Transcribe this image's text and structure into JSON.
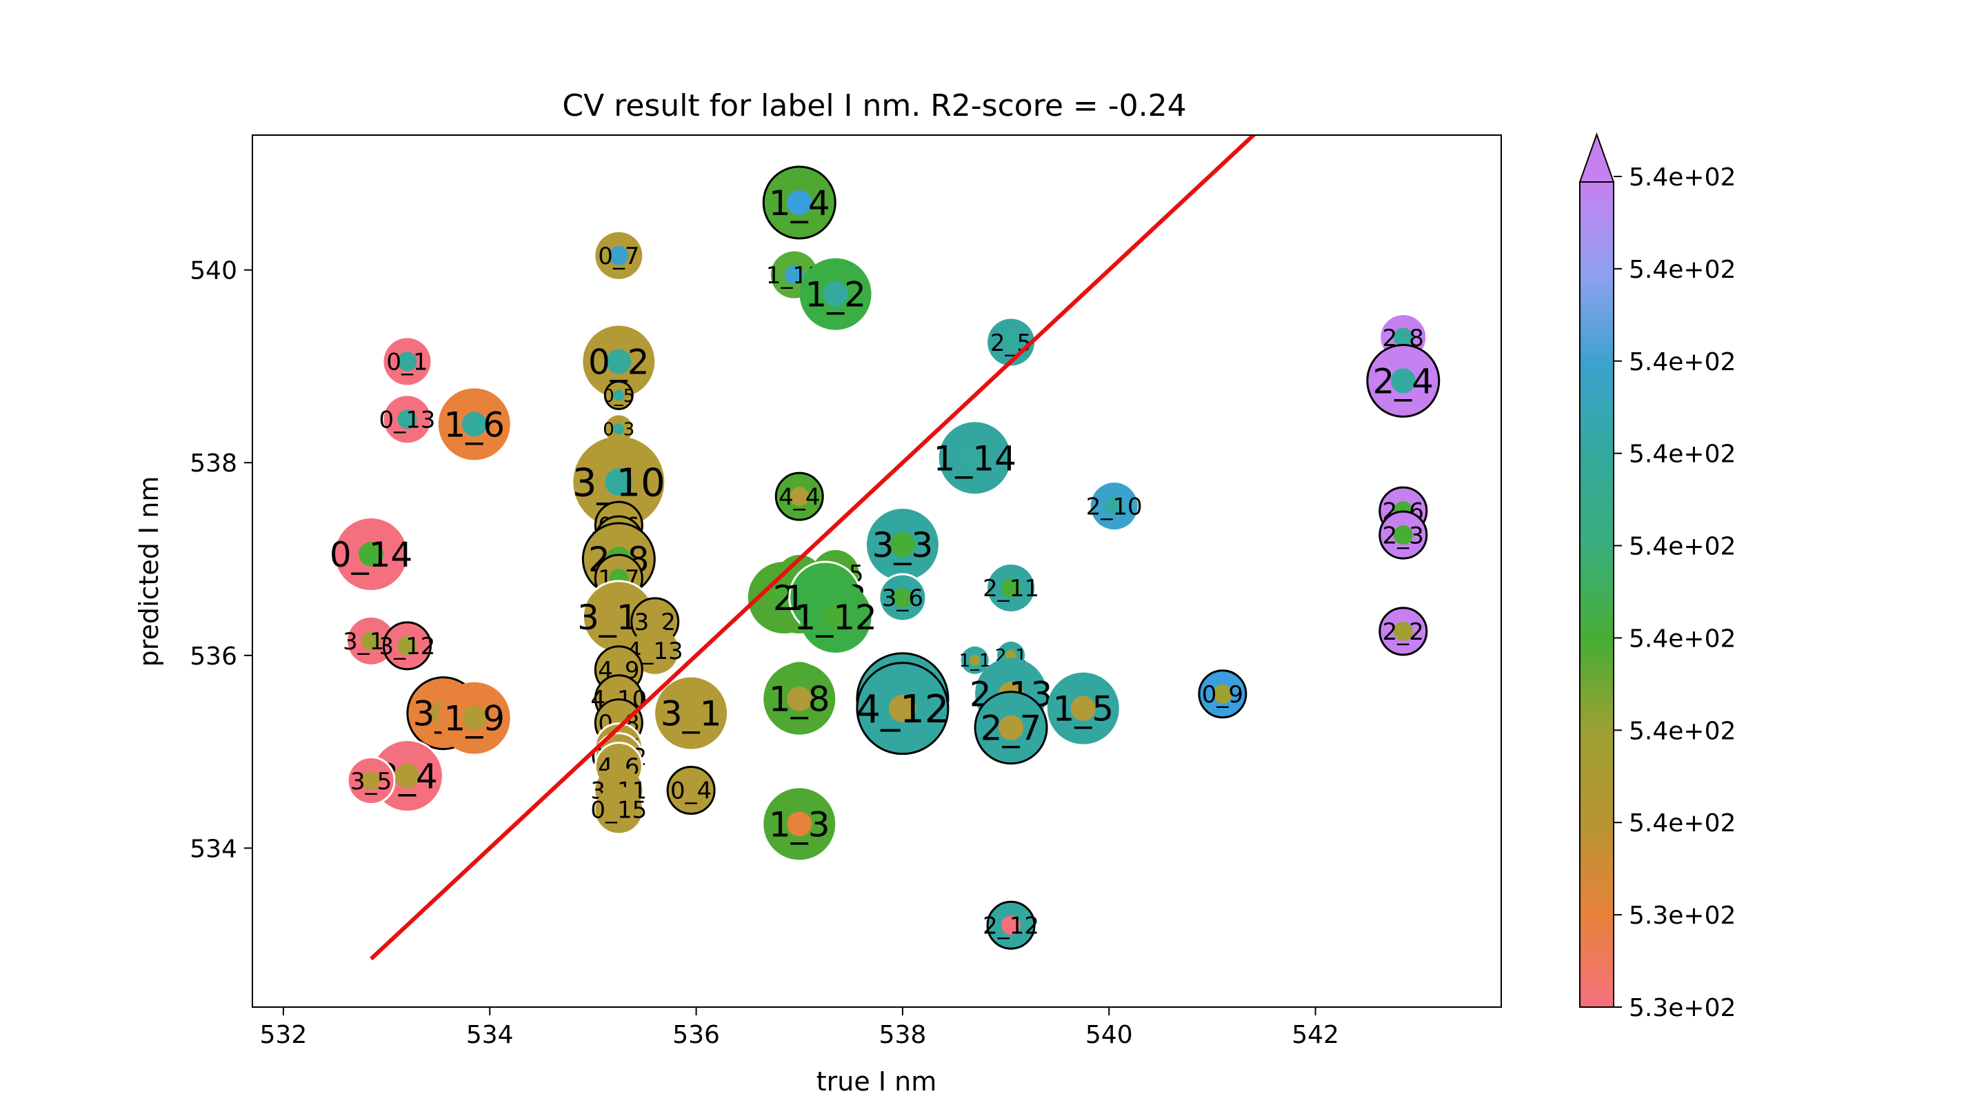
{
  "chart_data": {
    "type": "scatter",
    "title": "CV result for label I nm. R2-score = -0.24",
    "xlabel": "true I nm",
    "ylabel": "predicted I nm",
    "xlim": [
      531.7,
      543.8
    ],
    "ylim": [
      532.35,
      541.4
    ],
    "xticks": [
      "532",
      "534",
      "536",
      "538",
      "540",
      "542"
    ],
    "yticks": [
      "534",
      "536",
      "538",
      "540"
    ],
    "grid": false,
    "reference_line": {
      "color": "#e81010",
      "from": [
        532.85,
        532.85
      ],
      "to": [
        541.5,
        541.5
      ]
    },
    "colorbar": {
      "tick_labels": [
        "5.3e+02",
        "5.3e+02",
        "5.4e+02",
        "5.4e+02",
        "5.4e+02",
        "5.4e+02",
        "5.4e+02",
        "5.4e+02",
        "5.4e+02",
        "5.4e+02"
      ],
      "extend": "max",
      "colors": [
        "#f5707f",
        "#e8823a",
        "#b89434",
        "#9ea034",
        "#48ad34",
        "#3aae7a",
        "#34a99c",
        "#3aa2cc",
        "#8fa0f0",
        "#c780f0"
      ]
    },
    "points": [
      {
        "label": "1_4",
        "x": 537.0,
        "y": 540.7,
        "size": 2,
        "color": "#4fa832",
        "inner_color": "#3a9fdc",
        "edge": "black"
      },
      {
        "label": "0_7",
        "x": 535.25,
        "y": 540.15,
        "size": 1,
        "color": "#b29a37",
        "inner_color": "#3aa2cc",
        "edge": "none"
      },
      {
        "label": "1_11",
        "x": 536.95,
        "y": 539.95,
        "size": 1,
        "color": "#58ad36",
        "inner_color": "#3aa2cc",
        "edge": "none"
      },
      {
        "label": "1_2",
        "x": 537.35,
        "y": 539.75,
        "size": 2,
        "color": "#3aae44",
        "inner_color": "#34aa9e",
        "edge": "none"
      },
      {
        "label": "2_5",
        "x": 539.05,
        "y": 539.25,
        "size": 1,
        "color": "#34a6a0",
        "inner_color": "#34aa9e",
        "edge": "none"
      },
      {
        "label": "0_1",
        "x": 533.2,
        "y": 539.05,
        "size": 1,
        "color": "#f5707f",
        "inner_color": "#34a99c",
        "edge": "none"
      },
      {
        "label": "0_2",
        "x": 535.25,
        "y": 539.05,
        "size": 2,
        "color": "#b29a37",
        "inner_color": "#34a99c",
        "edge": "none"
      },
      {
        "label": "2_8",
        "x": 542.85,
        "y": 539.3,
        "size": 1,
        "color": "#c780f0",
        "inner_color": "#34a99c",
        "edge": "white"
      },
      {
        "label": "2_4",
        "x": 542.85,
        "y": 538.85,
        "size": 2,
        "color": "#c780f0",
        "inner_color": "#34aa9e",
        "edge": "black"
      },
      {
        "label": "0_5",
        "x": 535.25,
        "y": 538.7,
        "size": 0,
        "color": "#b29a37",
        "inner_color": "#34aa9e",
        "edge": "black"
      },
      {
        "label": "0_13",
        "x": 533.2,
        "y": 538.45,
        "size": 1,
        "color": "#f5707f",
        "inner_color": "#34aa9e",
        "edge": "none"
      },
      {
        "label": "1_6",
        "x": 533.85,
        "y": 538.4,
        "size": 2,
        "color": "#e8823a",
        "inner_color": "#34aa9e",
        "edge": "none"
      },
      {
        "label": "0_3",
        "x": 535.25,
        "y": 538.35,
        "size": 0,
        "color": "#b29a37",
        "inner_color": "#34aa9e",
        "edge": "none"
      },
      {
        "label": "1_14",
        "x": 538.7,
        "y": 538.05,
        "size": 2,
        "color": "#34a6a0",
        "inner_color": "#34aa9e",
        "edge": "none"
      },
      {
        "label": "3_10",
        "x": 535.25,
        "y": 537.8,
        "size": 3,
        "color": "#b29a37",
        "inner_color": "#34aa9e",
        "edge": "none"
      },
      {
        "label": "4_4",
        "x": 537.0,
        "y": 537.65,
        "size": 1,
        "color": "#4fa832",
        "inner_color": "#b29a37",
        "edge": "black"
      },
      {
        "label": "2_10",
        "x": 540.05,
        "y": 537.55,
        "size": 1,
        "color": "#3aa2cc",
        "inner_color": "#34aa9e",
        "edge": "none"
      },
      {
        "label": "2_6",
        "x": 542.85,
        "y": 537.5,
        "size": 1,
        "color": "#c780f0",
        "inner_color": "#48ad34",
        "edge": "black"
      },
      {
        "label": "2_3",
        "x": 542.85,
        "y": 537.25,
        "size": 1,
        "color": "#c780f0",
        "inner_color": "#48ad34",
        "edge": "black"
      },
      {
        "label": "0_6",
        "x": 535.25,
        "y": 537.35,
        "size": 1,
        "color": "#b29a37",
        "inner_color": "#34aa9e",
        "edge": "black"
      },
      {
        "label": "3_12",
        "x": 535.25,
        "y": 537.2,
        "size": 1,
        "color": "#b29a37",
        "inner_color": "#34aa9e",
        "edge": "black"
      },
      {
        "label": "3_3",
        "x": 538.0,
        "y": 537.15,
        "size": 2,
        "color": "#34a6a0",
        "inner_color": "#48ad34",
        "edge": "none"
      },
      {
        "label": "0_14",
        "x": 532.85,
        "y": 537.05,
        "size": 2,
        "color": "#f5707f",
        "inner_color": "#48ad34",
        "edge": "none"
      },
      {
        "label": "2_8",
        "x": 535.25,
        "y": 537.0,
        "size": 2,
        "color": "#b29a37",
        "inner_color": "#48ad34",
        "edge": "black"
      },
      {
        "label": "1_7",
        "x": 535.25,
        "y": 536.8,
        "size": 1,
        "color": "#b29a37",
        "inner_color": "#48ad34",
        "edge": "black"
      },
      {
        "label": "1_7",
        "x": 537.0,
        "y": 536.8,
        "size": 1,
        "color": "#4fa832",
        "inner_color": "#b29a37",
        "edge": "none"
      },
      {
        "label": "1_15",
        "x": 537.35,
        "y": 536.85,
        "size": 1,
        "color": "#4fa832",
        "inner_color": "#48ad34",
        "edge": "none"
      },
      {
        "label": "2_11",
        "x": 539.05,
        "y": 536.7,
        "size": 1,
        "color": "#34a6a0",
        "inner_color": "#48ad34",
        "edge": "none"
      },
      {
        "label": "1_9",
        "x": 537.0,
        "y": 536.6,
        "size": 2,
        "color": "#4fa832",
        "inner_color": "#48ad34",
        "edge": "none"
      },
      {
        "label": "2",
        "x": 536.85,
        "y": 536.6,
        "size": 2,
        "color": "#4fa832",
        "inner_color": "#48ad34",
        "edge": "none"
      },
      {
        "label": "1_13",
        "x": 537.25,
        "y": 536.6,
        "size": 2,
        "color": "#3aae44",
        "inner_color": "#48ad34",
        "edge": "white"
      },
      {
        "label": "3_6",
        "x": 538.0,
        "y": 536.6,
        "size": 1,
        "color": "#34a6a0",
        "inner_color": "#48ad34",
        "edge": "white"
      },
      {
        "label": "1_12",
        "x": 537.35,
        "y": 536.4,
        "size": 2,
        "color": "#3aae44",
        "inner_color": "#48ad34",
        "edge": "none"
      },
      {
        "label": "3_15",
        "x": 535.25,
        "y": 536.4,
        "size": 2,
        "color": "#b29a37",
        "inner_color": "#b29a37",
        "edge": "white"
      },
      {
        "label": "3_2",
        "x": 535.6,
        "y": 536.35,
        "size": 1,
        "color": "#b29a37",
        "inner_color": "#b29a37",
        "edge": "black"
      },
      {
        "label": "2_2",
        "x": 542.85,
        "y": 536.25,
        "size": 1,
        "color": "#c780f0",
        "inner_color": "#9ea034",
        "edge": "black"
      },
      {
        "label": "3_16",
        "x": 532.85,
        "y": 536.15,
        "size": 1,
        "color": "#f5707f",
        "inner_color": "#9ea034",
        "edge": "none"
      },
      {
        "label": "3_12",
        "x": 533.2,
        "y": 536.1,
        "size": 1,
        "color": "#f5707f",
        "inner_color": "#9ea034",
        "edge": "black"
      },
      {
        "label": "4_13",
        "x": 535.6,
        "y": 536.05,
        "size": 1,
        "color": "#b29a37",
        "inner_color": "#b29a37",
        "edge": "none"
      },
      {
        "label": "2_1",
        "x": 539.05,
        "y": 536.0,
        "size": 0,
        "color": "#34a6a0",
        "inner_color": "#9ea034",
        "edge": "none"
      },
      {
        "label": "1_1",
        "x": 538.7,
        "y": 535.95,
        "size": 0,
        "color": "#34a6a0",
        "inner_color": "#9ea034",
        "edge": "none"
      },
      {
        "label": "4_9",
        "x": 535.25,
        "y": 535.85,
        "size": 1,
        "color": "#b29a37",
        "inner_color": "#b29a37",
        "edge": "black"
      },
      {
        "label": "3_14",
        "x": 537.0,
        "y": 535.7,
        "size": 1,
        "color": "#4fa832",
        "inner_color": "#b29a37",
        "edge": "white"
      },
      {
        "label": "2_13",
        "x": 539.05,
        "y": 535.6,
        "size": 2,
        "color": "#34a6a0",
        "inner_color": "#b29a37",
        "edge": "none"
      },
      {
        "label": "0_9",
        "x": 541.1,
        "y": 535.6,
        "size": 1,
        "color": "#3a9fdc",
        "inner_color": "#9ea034",
        "edge": "black"
      },
      {
        "label": "1_8",
        "x": 537.0,
        "y": 535.55,
        "size": 2,
        "color": "#4fa832",
        "inner_color": "#b29a37",
        "edge": "none"
      },
      {
        "label": "4_10",
        "x": 535.25,
        "y": 535.55,
        "size": 1,
        "color": "#b29a37",
        "inner_color": "#b29a37",
        "edge": "black"
      },
      {
        "label": "4_5",
        "x": 538.0,
        "y": 535.55,
        "size": 3,
        "color": "#34a6a0",
        "inner_color": "#48ad34",
        "edge": "black"
      },
      {
        "label": "4_12",
        "x": 538.0,
        "y": 535.45,
        "size": 3,
        "color": "#34a6a0",
        "inner_color": "#b29a37",
        "edge": "black"
      },
      {
        "label": "1_5",
        "x": 539.75,
        "y": 535.45,
        "size": 2,
        "color": "#34a6a0",
        "inner_color": "#b29a37",
        "edge": "none"
      },
      {
        "label": "3_1",
        "x": 535.95,
        "y": 535.4,
        "size": 2,
        "color": "#b29a37",
        "inner_color": "#b29a37",
        "edge": "none"
      },
      {
        "label": "3_1",
        "x": 533.55,
        "y": 535.4,
        "size": 2,
        "color": "#e8823a",
        "inner_color": "#b29a37",
        "edge": "black"
      },
      {
        "label": "1_9",
        "x": 533.85,
        "y": 535.35,
        "size": 2,
        "color": "#e8823a",
        "inner_color": "#b29a37",
        "edge": "none"
      },
      {
        "label": "0_8",
        "x": 535.25,
        "y": 535.3,
        "size": 1,
        "color": "#b29a37",
        "inner_color": "#b29a37",
        "edge": "black"
      },
      {
        "label": "2_7",
        "x": 539.05,
        "y": 535.25,
        "size": 2,
        "color": "#34a6a0",
        "inner_color": "#b29a37",
        "edge": "black"
      },
      {
        "label": "4_7",
        "x": 535.25,
        "y": 535.05,
        "size": 1,
        "color": "#b29a37",
        "inner_color": "#b29a37",
        "edge": "white"
      },
      {
        "label": "0_12",
        "x": 535.25,
        "y": 534.95,
        "size": 1,
        "color": "#b29a37",
        "inner_color": "#b29a37",
        "edge": "white"
      },
      {
        "label": "3_4",
        "x": 533.2,
        "y": 534.75,
        "size": 2,
        "color": "#f5707f",
        "inner_color": "#b29a37",
        "edge": "white"
      },
      {
        "label": "3_5",
        "x": 532.85,
        "y": 534.7,
        "size": 1,
        "color": "#f5707f",
        "inner_color": "#b29a37",
        "edge": "white"
      },
      {
        "label": "4_6",
        "x": 535.25,
        "y": 534.85,
        "size": 1,
        "color": "#b29a37",
        "inner_color": "#b29a37",
        "edge": "white"
      },
      {
        "label": "0_4",
        "x": 535.95,
        "y": 534.6,
        "size": 1,
        "color": "#b29a37",
        "inner_color": "#b29a37",
        "edge": "black"
      },
      {
        "label": "3_11",
        "x": 535.25,
        "y": 534.6,
        "size": 1,
        "color": "#b29a37",
        "inner_color": "#b29a37",
        "edge": "none"
      },
      {
        "label": "0_15",
        "x": 535.25,
        "y": 534.4,
        "size": 1,
        "color": "#b29a37",
        "inner_color": "#b29a37",
        "edge": "none"
      },
      {
        "label": "1_3",
        "x": 537.0,
        "y": 534.25,
        "size": 2,
        "color": "#4fa832",
        "inner_color": "#e8823a",
        "edge": "none"
      },
      {
        "label": "2_12",
        "x": 539.05,
        "y": 533.2,
        "size": 1,
        "color": "#34a6a0",
        "inner_color": "#f5707f",
        "edge": "black"
      }
    ]
  }
}
